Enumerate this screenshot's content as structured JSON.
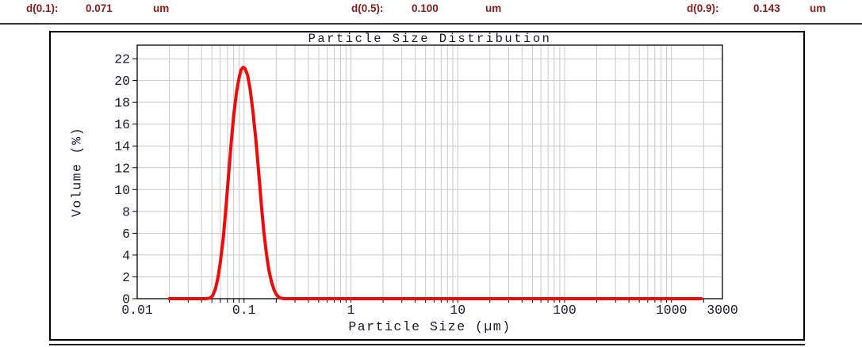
{
  "header": {
    "text_color": "#8b1a1a",
    "stats": [
      {
        "label": "d(0.1):",
        "value": "0.071",
        "unit": "um"
      },
      {
        "label": "d(0.5):",
        "value": "0.100",
        "unit": "um"
      },
      {
        "label": "d(0.9):",
        "value": "0.143",
        "unit": "um"
      }
    ]
  },
  "chart_data": {
    "type": "line",
    "title": "Particle Size Distribution",
    "xlabel": "Particle Size (µm)",
    "ylabel": "Volume (%)",
    "x_scale": "log",
    "xlim": [
      0.01,
      3000
    ],
    "ylim": [
      0,
      23.24
    ],
    "grid": true,
    "legend": "none",
    "x_ticks": [
      {
        "value": 0.01,
        "label": "0.01"
      },
      {
        "value": 0.1,
        "label": "0.1"
      },
      {
        "value": 1,
        "label": "1"
      },
      {
        "value": 10,
        "label": "10"
      },
      {
        "value": 100,
        "label": "100"
      },
      {
        "value": 1000,
        "label": "1000"
      },
      {
        "value": 3000,
        "label": "3000"
      }
    ],
    "y_ticks": [
      0,
      2,
      4,
      6,
      8,
      10,
      12,
      14,
      16,
      18,
      20,
      22
    ],
    "colors": {
      "curve": "#ee0a0a",
      "grid": "#c9c9c9",
      "axis": "#000000",
      "text": "#1a1a2e"
    },
    "peak_summary": {
      "mode_um": 0.098,
      "peak_volume_pct": 21.2
    },
    "series": [
      {
        "name": "Volume",
        "points": [
          [
            0.02,
            0
          ],
          [
            0.025,
            0
          ],
          [
            0.03,
            0
          ],
          [
            0.035,
            0
          ],
          [
            0.04,
            0
          ],
          [
            0.044,
            0
          ],
          [
            0.048,
            0.05
          ],
          [
            0.051,
            0.3
          ],
          [
            0.054,
            0.9
          ],
          [
            0.057,
            1.9
          ],
          [
            0.06,
            3.3
          ],
          [
            0.064,
            5.6
          ],
          [
            0.068,
            8.6
          ],
          [
            0.072,
            11.6
          ],
          [
            0.076,
            14.4
          ],
          [
            0.08,
            16.8
          ],
          [
            0.085,
            18.9
          ],
          [
            0.09,
            20.3
          ],
          [
            0.094,
            21.0
          ],
          [
            0.098,
            21.2
          ],
          [
            0.102,
            21.1
          ],
          [
            0.108,
            20.5
          ],
          [
            0.114,
            19.2
          ],
          [
            0.121,
            17.2
          ],
          [
            0.129,
            14.6
          ],
          [
            0.137,
            11.6
          ],
          [
            0.145,
            8.7
          ],
          [
            0.153,
            6.2
          ],
          [
            0.162,
            4.1
          ],
          [
            0.171,
            2.6
          ],
          [
            0.181,
            1.5
          ],
          [
            0.191,
            0.8
          ],
          [
            0.201,
            0.38
          ],
          [
            0.211,
            0.15
          ],
          [
            0.222,
            0.05
          ],
          [
            0.235,
            0
          ],
          [
            0.26,
            0
          ],
          [
            0.3,
            0
          ],
          [
            0.4,
            0
          ],
          [
            0.6,
            0
          ],
          [
            1,
            0
          ],
          [
            2,
            0
          ],
          [
            5,
            0
          ],
          [
            10,
            0
          ],
          [
            20,
            0
          ],
          [
            50,
            0
          ],
          [
            100,
            0
          ],
          [
            200,
            0
          ],
          [
            500,
            0
          ],
          [
            1000,
            0
          ],
          [
            1400,
            0
          ],
          [
            1900,
            0
          ]
        ]
      }
    ]
  }
}
